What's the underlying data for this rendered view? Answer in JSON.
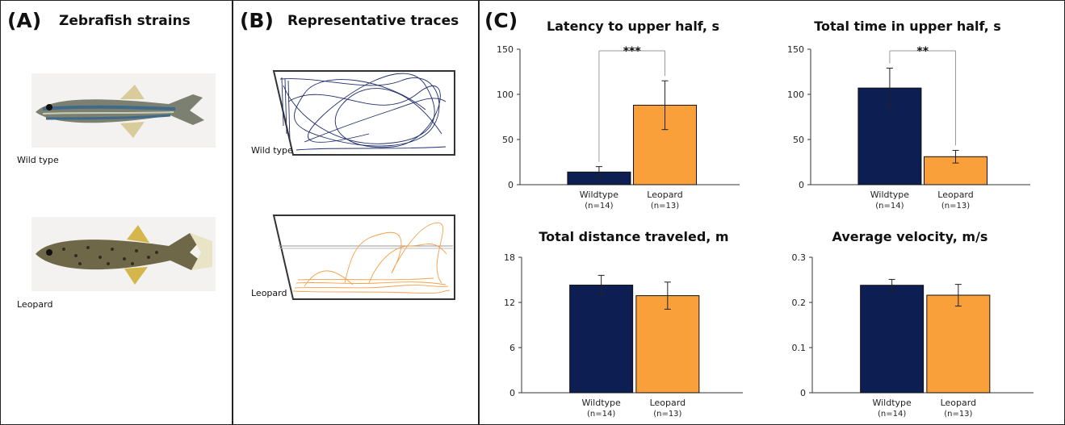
{
  "panel_a": {
    "label": "(A)",
    "title": "Zebrafish strains",
    "photos": [
      {
        "caption": "Wild type",
        "body_color": "#7a7d6f",
        "stripe_color": "#3f6a8a"
      },
      {
        "caption": "Leopard",
        "body_color": "#6f6848",
        "spot_color": "#2f2c22"
      }
    ]
  },
  "panel_b": {
    "label": "(B)",
    "title": "Representative traces",
    "traces": [
      {
        "caption": "Wild type",
        "color": "#1f2d6b"
      },
      {
        "caption": "Leopard",
        "color": "#f5a04a"
      }
    ]
  },
  "panel_c": {
    "label": "(C)"
  },
  "colors": {
    "wildtype": "#0d1f52",
    "leopard": "#f9a03b"
  },
  "chart_data": [
    {
      "type": "bar",
      "title": "Latency to upper half, s",
      "categories": [
        "Wildtype",
        "Leopard"
      ],
      "category_notes": [
        "(n=14)",
        "(n=13)"
      ],
      "values": [
        14,
        88
      ],
      "error": [
        6,
        27
      ],
      "ylim": [
        0,
        150
      ],
      "yticks": [
        "0",
        "50",
        "100",
        "150"
      ],
      "significance": "***"
    },
    {
      "type": "bar",
      "title": "Total time in upper half, s",
      "categories": [
        "Wildtype",
        "Leopard"
      ],
      "category_notes": [
        "(n=14)",
        "(n=13)"
      ],
      "values": [
        107,
        31
      ],
      "error": [
        22,
        7
      ],
      "ylim": [
        0,
        150
      ],
      "yticks": [
        "0",
        "50",
        "100",
        "150"
      ],
      "significance": "**"
    },
    {
      "type": "bar",
      "title": "Total distance traveled, m",
      "categories": [
        "Wildtype",
        "Leopard"
      ],
      "category_notes": [
        "(n=14)",
        "(n=13)"
      ],
      "values": [
        14.3,
        12.9
      ],
      "error": [
        1.3,
        1.8
      ],
      "ylim": [
        0,
        18
      ],
      "yticks": [
        "0",
        "6",
        "12",
        "18"
      ],
      "significance": ""
    },
    {
      "type": "bar",
      "title": "Average velocity, m/s",
      "categories": [
        "Wildtype",
        "Leopard"
      ],
      "category_notes": [
        "(n=14)",
        "(n=13)"
      ],
      "values": [
        0.238,
        0.216
      ],
      "error": [
        0.013,
        0.024
      ],
      "ylim": [
        0,
        0.3
      ],
      "yticks": [
        "0",
        "0.1",
        "0.2",
        "0.3"
      ],
      "significance": ""
    }
  ]
}
